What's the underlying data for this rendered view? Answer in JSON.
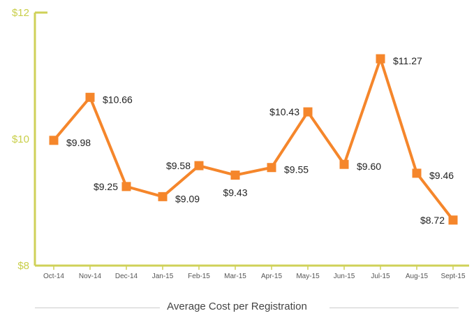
{
  "chart_data": {
    "type": "line",
    "categories": [
      "Oct-14",
      "Nov-14",
      "Dec-14",
      "Jan-15",
      "Feb-15",
      "Mar-15",
      "Apr-15",
      "May-15",
      "Jun-15",
      "Jul-15",
      "Aug-15",
      "Sept-15"
    ],
    "series": [
      {
        "name": "Average Cost per Registration",
        "values": [
          9.98,
          10.66,
          9.25,
          9.09,
          9.58,
          9.43,
          9.55,
          10.43,
          9.6,
          11.27,
          9.46,
          8.72
        ],
        "labels": [
          "$9.98",
          "$10.66",
          "$9.25",
          "$9.09",
          "$9.58",
          "$9.43",
          "$9.55",
          "$10.43",
          "$9.60",
          "$11.27",
          "$9.46",
          "$8.72"
        ],
        "label_sides": [
          "right",
          "right",
          "left",
          "right",
          "left",
          "below",
          "right",
          "left",
          "right",
          "right",
          "right",
          "left"
        ]
      }
    ],
    "y_ticks": [
      8,
      10,
      12
    ],
    "y_tick_labels": [
      "$8",
      "$10",
      "$12"
    ],
    "ylim": [
      8,
      12
    ],
    "grid": false,
    "legend": "bottom",
    "colors": {
      "line": "#f5862b",
      "axis": "#cfd158",
      "tick_text": "#c9cf4a"
    }
  }
}
